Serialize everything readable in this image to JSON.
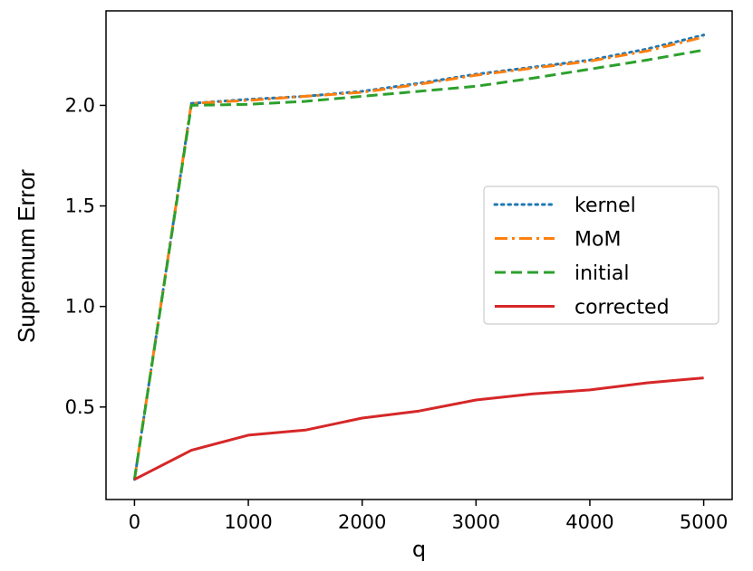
{
  "chart_data": {
    "type": "line",
    "title": "",
    "xlabel": "q",
    "ylabel": "Supremum Error",
    "xlim": [
      -250,
      5250
    ],
    "ylim": [
      0.04,
      2.47
    ],
    "xticks": [
      0,
      1000,
      2000,
      3000,
      4000,
      5000
    ],
    "xtick_labels": [
      "0",
      "1000",
      "2000",
      "3000",
      "4000",
      "5000"
    ],
    "yticks": [
      0.5,
      1.0,
      1.5,
      2.0
    ],
    "ytick_labels": [
      "0.5",
      "1.0",
      "1.5",
      "2.0"
    ],
    "grid": false,
    "legend_position": "center-right",
    "x": [
      0,
      500,
      1000,
      1500,
      2000,
      2500,
      3000,
      3500,
      4000,
      4500,
      5000
    ],
    "series": [
      {
        "name": "kernel",
        "color": "#1f77b4",
        "style": "dotted",
        "values": [
          0.14,
          2.01,
          2.03,
          2.045,
          2.07,
          2.11,
          2.155,
          2.19,
          2.225,
          2.28,
          2.35
        ]
      },
      {
        "name": "MoM",
        "color": "#ff7f0e",
        "style": "dashdot",
        "values": [
          0.14,
          2.01,
          2.025,
          2.045,
          2.065,
          2.105,
          2.15,
          2.185,
          2.22,
          2.27,
          2.34
        ]
      },
      {
        "name": "initial",
        "color": "#2ca02c",
        "style": "dashed",
        "values": [
          0.14,
          2.0,
          2.005,
          2.02,
          2.045,
          2.07,
          2.095,
          2.135,
          2.18,
          2.225,
          2.275
        ]
      },
      {
        "name": "corrected",
        "color": "#d62728",
        "style": "solid",
        "values": [
          0.14,
          0.285,
          0.36,
          0.385,
          0.445,
          0.48,
          0.535,
          0.565,
          0.585,
          0.62,
          0.645
        ]
      }
    ]
  }
}
